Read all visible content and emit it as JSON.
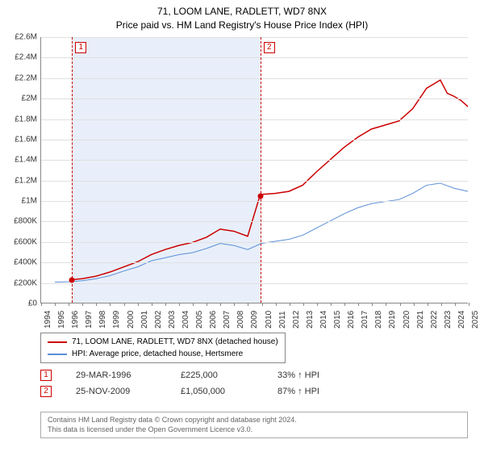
{
  "title_line1": "71, LOOM LANE, RADLETT, WD7 8NX",
  "title_line2": "Price paid vs. HM Land Registry's House Price Index (HPI)",
  "chart": {
    "background_color": "#ffffff",
    "grid_color": "#e0e0e0",
    "axis_color": "#888888",
    "shade_color": "#e8effa",
    "x_start": 1994,
    "x_end": 2025,
    "y_start": 0,
    "y_end": 2600000,
    "y_ticks": [
      {
        "v": 0,
        "label": "£0"
      },
      {
        "v": 200000,
        "label": "£200K"
      },
      {
        "v": 400000,
        "label": "£400K"
      },
      {
        "v": 600000,
        "label": "£600K"
      },
      {
        "v": 800000,
        "label": "£800K"
      },
      {
        "v": 1000000,
        "label": "£1M"
      },
      {
        "v": 1200000,
        "label": "£1.2M"
      },
      {
        "v": 1400000,
        "label": "£1.4M"
      },
      {
        "v": 1600000,
        "label": "£1.6M"
      },
      {
        "v": 1800000,
        "label": "£1.8M"
      },
      {
        "v": 2000000,
        "label": "£2M"
      },
      {
        "v": 2200000,
        "label": "£2.2M"
      },
      {
        "v": 2400000,
        "label": "£2.4M"
      },
      {
        "v": 2600000,
        "label": "£2.6M"
      }
    ],
    "x_ticks": [
      1994,
      1995,
      1996,
      1997,
      1998,
      1999,
      2000,
      2001,
      2002,
      2003,
      2004,
      2005,
      2006,
      2007,
      2008,
      2009,
      2010,
      2011,
      2012,
      2013,
      2014,
      2015,
      2016,
      2017,
      2018,
      2019,
      2020,
      2021,
      2022,
      2023,
      2024,
      2025
    ],
    "shade_start": 1996.24,
    "shade_end": 2009.9,
    "markers": [
      {
        "id": "1",
        "x": 1996.24,
        "y": 225000
      },
      {
        "id": "2",
        "x": 2009.9,
        "y": 1050000
      }
    ],
    "series": [
      {
        "name": "71, LOOM LANE, RADLETT, WD7 8NX (detached house)",
        "color": "#cc0000",
        "width": 1.5,
        "points": [
          [
            1996.24,
            225000
          ],
          [
            1997,
            235000
          ],
          [
            1998,
            260000
          ],
          [
            1999,
            300000
          ],
          [
            2000,
            350000
          ],
          [
            2001,
            400000
          ],
          [
            2002,
            470000
          ],
          [
            2003,
            520000
          ],
          [
            2004,
            560000
          ],
          [
            2005,
            590000
          ],
          [
            2006,
            640000
          ],
          [
            2007,
            720000
          ],
          [
            2008,
            700000
          ],
          [
            2009,
            650000
          ],
          [
            2009.9,
            1050000
          ],
          [
            2010,
            1060000
          ],
          [
            2011,
            1070000
          ],
          [
            2012,
            1090000
          ],
          [
            2013,
            1150000
          ],
          [
            2014,
            1280000
          ],
          [
            2015,
            1400000
          ],
          [
            2016,
            1520000
          ],
          [
            2017,
            1620000
          ],
          [
            2018,
            1700000
          ],
          [
            2019,
            1740000
          ],
          [
            2020,
            1780000
          ],
          [
            2021,
            1900000
          ],
          [
            2022,
            2100000
          ],
          [
            2023,
            2180000
          ],
          [
            2023.5,
            2050000
          ],
          [
            2024,
            2020000
          ],
          [
            2024.5,
            1980000
          ],
          [
            2025,
            1920000
          ]
        ]
      },
      {
        "name": "HPI: Average price, detached house, Hertsmere",
        "color": "#5b8fd6",
        "width": 1,
        "points": [
          [
            1995,
            200000
          ],
          [
            1996,
            205000
          ],
          [
            1997,
            215000
          ],
          [
            1998,
            235000
          ],
          [
            1999,
            265000
          ],
          [
            2000,
            310000
          ],
          [
            2001,
            350000
          ],
          [
            2002,
            410000
          ],
          [
            2003,
            440000
          ],
          [
            2004,
            470000
          ],
          [
            2005,
            490000
          ],
          [
            2006,
            530000
          ],
          [
            2007,
            580000
          ],
          [
            2008,
            560000
          ],
          [
            2009,
            520000
          ],
          [
            2010,
            580000
          ],
          [
            2011,
            600000
          ],
          [
            2012,
            620000
          ],
          [
            2013,
            660000
          ],
          [
            2014,
            730000
          ],
          [
            2015,
            800000
          ],
          [
            2016,
            870000
          ],
          [
            2017,
            930000
          ],
          [
            2018,
            970000
          ],
          [
            2019,
            990000
          ],
          [
            2020,
            1010000
          ],
          [
            2021,
            1070000
          ],
          [
            2022,
            1150000
          ],
          [
            2023,
            1170000
          ],
          [
            2024,
            1120000
          ],
          [
            2025,
            1090000
          ]
        ]
      }
    ]
  },
  "legend": {
    "items": [
      {
        "label": "71, LOOM LANE, RADLETT, WD7 8NX (detached house)",
        "color": "#cc0000"
      },
      {
        "label": "HPI: Average price, detached house, Hertsmere",
        "color": "#5b8fd6"
      }
    ]
  },
  "sales": [
    {
      "marker": "1",
      "date": "29-MAR-1996",
      "price": "£225,000",
      "hpi": "33% ↑ HPI"
    },
    {
      "marker": "2",
      "date": "25-NOV-2009",
      "price": "£1,050,000",
      "hpi": "87% ↑ HPI"
    }
  ],
  "footer_line1": "Contains HM Land Registry data © Crown copyright and database right 2024.",
  "footer_line2": "This data is licensed under the Open Government Licence v3.0."
}
